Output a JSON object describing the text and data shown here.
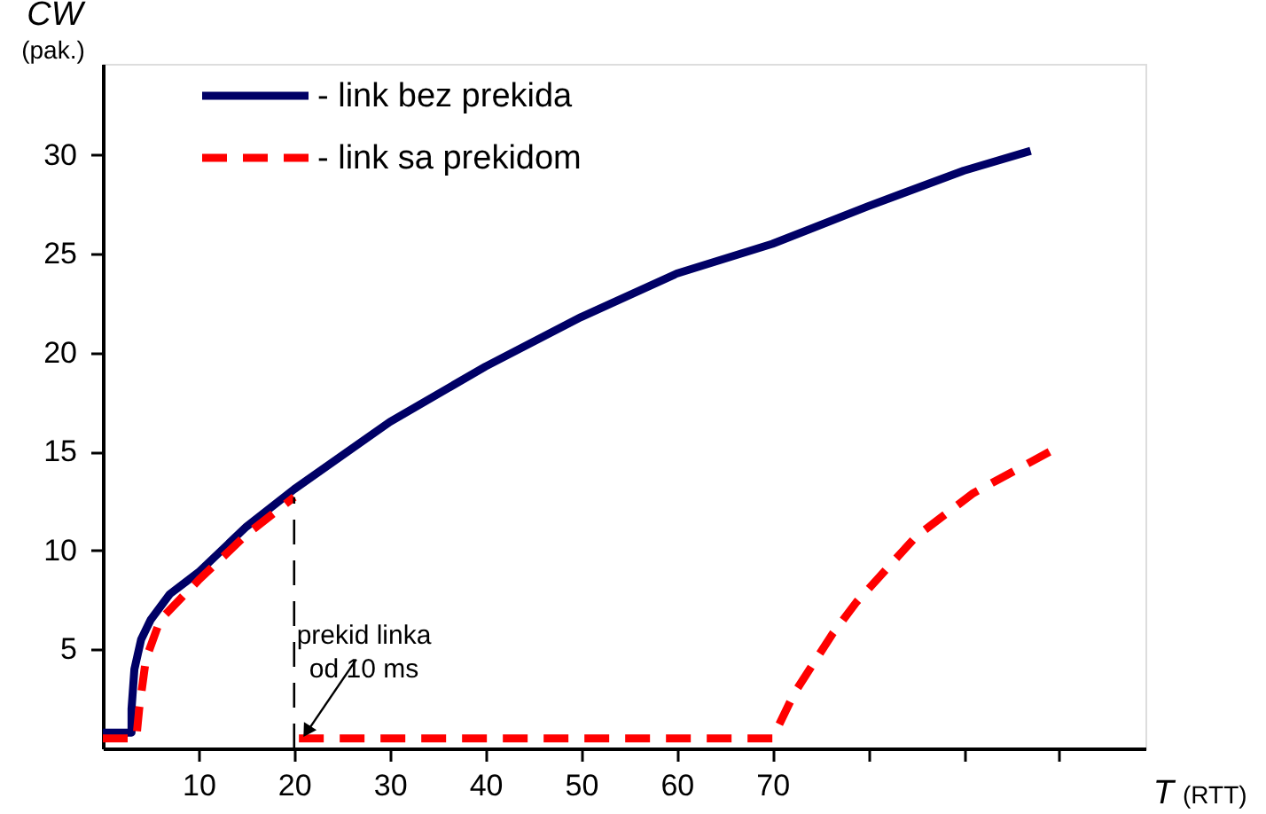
{
  "chart_data": {
    "type": "line",
    "xlabel": "T (RTT)",
    "ylabel": "CW (pak.)",
    "xlim": [
      0,
      109
    ],
    "ylim": [
      0,
      34.6
    ],
    "xticks": [
      10,
      20,
      30,
      40,
      50,
      60,
      70,
      {
        "value": 80,
        "label": null
      },
      {
        "value": 90,
        "label": null
      },
      {
        "value": 100,
        "label": null
      }
    ],
    "yticks": [
      5,
      10,
      15,
      20,
      25,
      30
    ],
    "grid": false,
    "legend": "top left",
    "marker": "none",
    "series": [
      {
        "name": "- link bez prekida",
        "color": "#000066",
        "line_style": "solid",
        "x": [
          0,
          3,
          3,
          3.3,
          4,
          5,
          7,
          10,
          15,
          20,
          30,
          40,
          50,
          60,
          70,
          80,
          90,
          97
        ],
        "values": [
          0.8,
          0.8,
          2,
          4,
          5.5,
          6.5,
          7.8,
          8.9,
          11.2,
          13.1,
          16.5,
          19.3,
          21.8,
          24,
          25.5,
          27.4,
          29.2,
          30.2
        ]
      },
      {
        "name": "- link sa prekidom",
        "color": "#ff0000",
        "line_style": "dashed",
        "x": [
          0,
          3.5,
          3.8,
          4.5,
          6,
          10,
          15,
          20,
          20.2,
          20.5,
          70,
          72.3,
          76.3,
          78.8,
          85,
          91,
          99
        ],
        "values": [
          0.5,
          0.5,
          2,
          4.5,
          6.5,
          8.5,
          10.8,
          12.7,
          null,
          0.5,
          0.5,
          2.8,
          5.8,
          7.4,
          10.7,
          12.9,
          15
        ]
      }
    ],
    "ref_lines": [
      {
        "axis": "x",
        "value": 20,
        "label": null,
        "color": "#000000",
        "line_style": "dashed"
      }
    ],
    "annotations": [
      {
        "text": "prekid linka\nod 10 ms",
        "x": 21,
        "y": 0.5
      }
    ]
  }
}
